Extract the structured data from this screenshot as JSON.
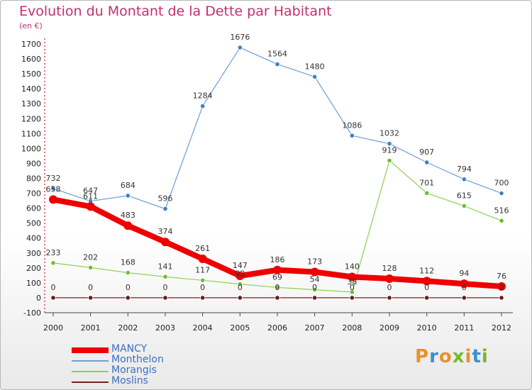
{
  "title": "Evolution du Montant de la Dette par Habitant",
  "subtitle": "(en €)",
  "logo_text": "Proxiti",
  "logo_colors": [
    "#e8912c",
    "#3c8fd8",
    "#e8912c",
    "#77b82a",
    "#e8912c",
    "#3c8fd8",
    "#77b82a"
  ],
  "chart_data": {
    "type": "line",
    "x": [
      2000,
      2001,
      2002,
      2003,
      2004,
      2005,
      2006,
      2007,
      2008,
      2009,
      2010,
      2011,
      2012
    ],
    "ylim": [
      -100,
      1700
    ],
    "yticks": [
      -100,
      0,
      100,
      200,
      300,
      400,
      500,
      600,
      700,
      800,
      900,
      1000,
      1100,
      1200,
      1300,
      1400,
      1500,
      1600,
      1700
    ],
    "grid": false,
    "legend_position": "bottom-left",
    "series": [
      {
        "name": "MANCY",
        "color": "#ee0000",
        "values": [
          658,
          611,
          483,
          374,
          261,
          147,
          186,
          173,
          140,
          128,
          112,
          94,
          76
        ]
      },
      {
        "name": "Monthelon",
        "color": "#6a9fd6",
        "values": [
          732,
          647,
          684,
          596,
          1284,
          1676,
          1564,
          1480,
          1086,
          1032,
          907,
          794,
          700
        ]
      },
      {
        "name": "Morangis",
        "color": "#8fd04f",
        "values": [
          233,
          202,
          168,
          141,
          117,
          92,
          69,
          54,
          38,
          919,
          701,
          615,
          516
        ]
      },
      {
        "name": "Moslins",
        "color": "#7a2020",
        "values": [
          0,
          0,
          0,
          0,
          0,
          0,
          0,
          0,
          0,
          0,
          0,
          0,
          0
        ]
      }
    ]
  }
}
